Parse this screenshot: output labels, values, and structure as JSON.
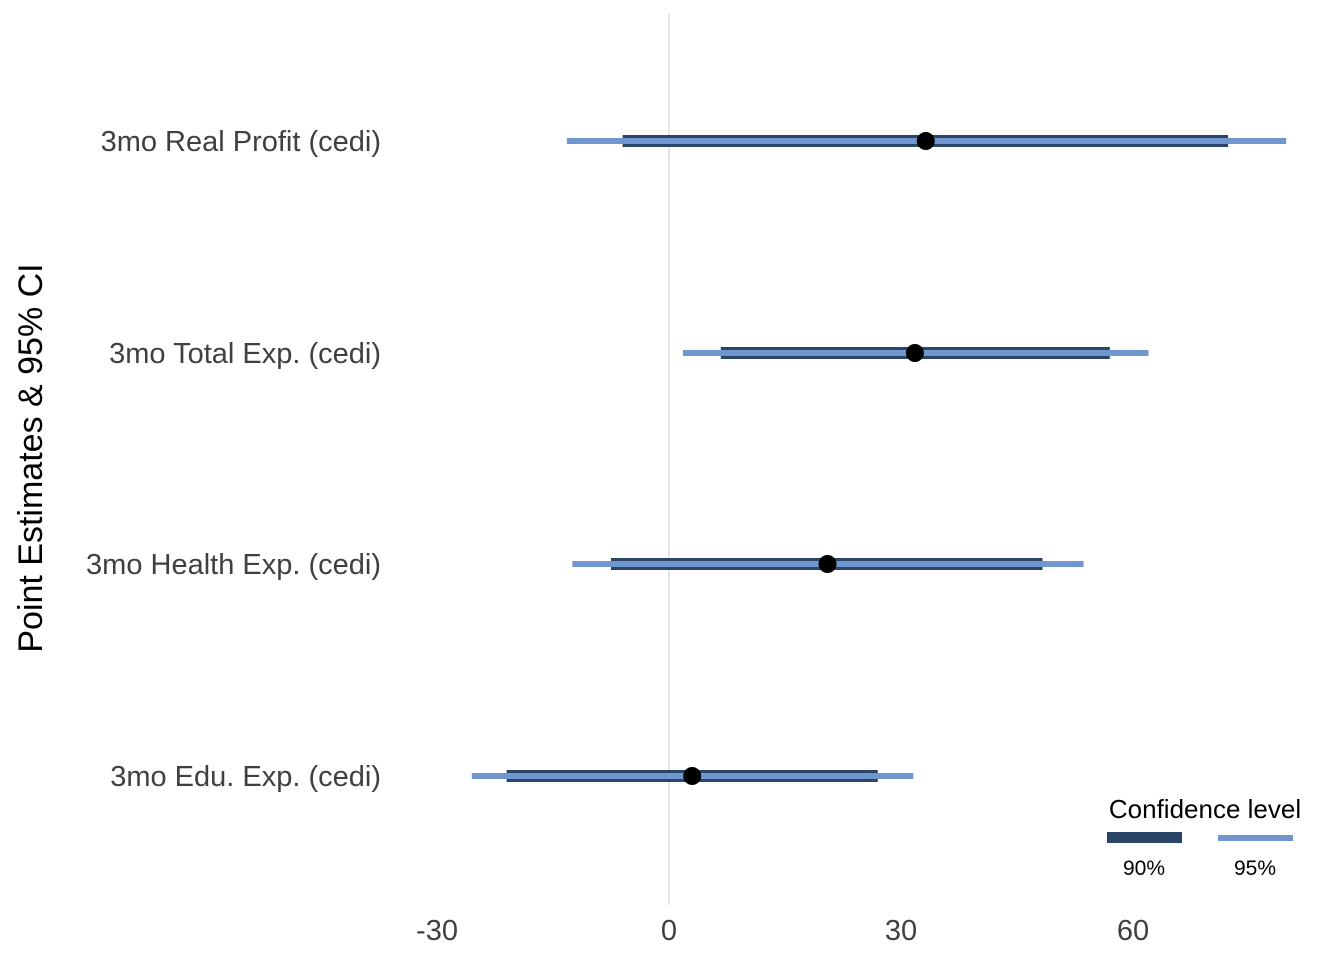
{
  "chart_data": {
    "type": "forest",
    "ylabel": "Point Estimates & 95% CI",
    "xticks": [
      -30,
      0,
      30,
      60
    ],
    "xlim": [
      -40,
      81
    ],
    "reference_line": 0,
    "categories": [
      "3mo Real Profit (cedi)",
      "3mo Total Exp. (cedi)",
      "3mo Health Exp. (cedi)",
      "3mo Edu. Exp. (cedi)"
    ],
    "estimates": [
      33.2,
      31.8,
      20.5,
      3.0
    ],
    "ci90": [
      [
        -6.0,
        72.3
      ],
      [
        6.7,
        57.0
      ],
      [
        -7.5,
        48.3
      ],
      [
        -21.0,
        27.0
      ]
    ],
    "ci95": [
      [
        -13.2,
        79.8
      ],
      [
        1.8,
        62.0
      ],
      [
        -12.5,
        53.6
      ],
      [
        -25.5,
        31.6
      ]
    ],
    "legend": {
      "title": "Confidence level",
      "entries": [
        {
          "label": "90%",
          "color": "#2b4566"
        },
        {
          "label": "95%",
          "color": "#6f96cf"
        }
      ],
      "position": "bottom-right"
    },
    "colors": {
      "ci90": "#2b4566",
      "ci95": "#6f96cf",
      "point": "#000000",
      "refline": "#c8c8c8"
    }
  }
}
